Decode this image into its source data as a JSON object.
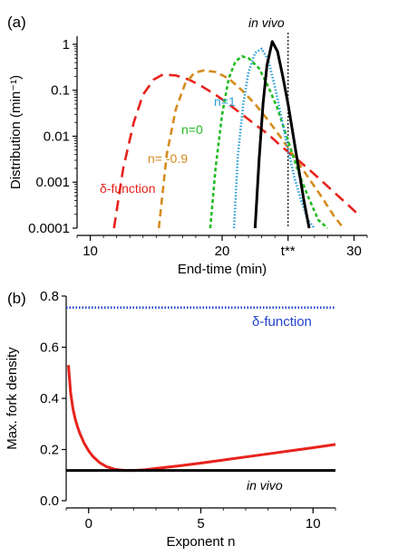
{
  "chart_data": [
    {
      "panel": "(a)",
      "type": "line",
      "xlabel": "End-time (min)",
      "ylabel": "Distribution (min⁻¹)",
      "xlim": [
        9,
        31
      ],
      "ylim": [
        0.0001,
        1.5
      ],
      "yscale": "log",
      "xticks": [
        {
          "value": 10,
          "label": "10"
        },
        {
          "value": 20,
          "label": "20"
        },
        {
          "value": 25,
          "label": "t**"
        },
        {
          "value": 30,
          "label": "30"
        }
      ],
      "yticks": [
        {
          "value": 0.0001,
          "label": "0.0001"
        },
        {
          "value": 0.001,
          "label": "0.001"
        },
        {
          "value": 0.01,
          "label": "0.01"
        },
        {
          "value": 0.1,
          "label": "0.1"
        },
        {
          "value": 1,
          "label": "1"
        }
      ],
      "vline": {
        "x": 25,
        "label": "t**"
      },
      "series": [
        {
          "name": "δ-function",
          "color": "#e8221c",
          "style": "long-dash",
          "x": [
            11.8,
            12.5,
            13.3,
            14.0,
            14.8,
            15.5,
            16.5,
            17.5,
            18.5,
            19.5,
            20.5,
            21.5,
            22.5,
            23.5,
            24.5,
            25.5,
            26.5,
            27.5,
            28.5,
            29.5,
            30.3
          ],
          "y": [
            0.0001,
            0.002,
            0.02,
            0.08,
            0.17,
            0.22,
            0.21,
            0.17,
            0.12,
            0.08,
            0.05,
            0.03,
            0.018,
            0.011,
            0.006,
            0.0035,
            0.002,
            0.0011,
            0.0006,
            0.00033,
            0.0002
          ]
        },
        {
          "name": "n= -0.9",
          "color": "#d48c1c",
          "style": "dash",
          "x": [
            15.2,
            15.8,
            16.5,
            17.2,
            17.9,
            18.6,
            19.5,
            20.5,
            21.5,
            22.5,
            23.5,
            24.5,
            25.5,
            26.5,
            27.5,
            28.5,
            29.2
          ],
          "y": [
            0.0001,
            0.004,
            0.04,
            0.14,
            0.24,
            0.27,
            0.25,
            0.18,
            0.1,
            0.05,
            0.022,
            0.009,
            0.0035,
            0.0013,
            0.0005,
            0.00018,
            0.0001
          ]
        },
        {
          "name": "n=0",
          "color": "#22bb22",
          "style": "short-dash",
          "x": [
            19.1,
            19.5,
            20.0,
            20.5,
            21.0,
            21.5,
            22.0,
            22.8,
            23.5,
            24.2,
            25.0,
            25.8,
            26.5,
            27.3,
            28.0
          ],
          "y": [
            0.0001,
            0.002,
            0.03,
            0.18,
            0.42,
            0.55,
            0.5,
            0.3,
            0.12,
            0.04,
            0.008,
            0.0016,
            0.0005,
            0.00015,
            0.0001
          ]
        },
        {
          "name": "n=1",
          "color": "#2a9ed8",
          "style": "dot",
          "x": [
            20.9,
            21.2,
            21.6,
            22.0,
            22.5,
            23.0,
            23.5,
            24.0,
            24.5,
            25.0,
            25.5,
            26.0,
            26.5,
            27.0
          ],
          "y": [
            0.0001,
            0.004,
            0.05,
            0.25,
            0.65,
            0.8,
            0.45,
            0.12,
            0.025,
            0.005,
            0.0012,
            0.0004,
            0.00015,
            0.0001
          ]
        },
        {
          "name": "in vivo",
          "color": "#000000",
          "style": "solid",
          "x": [
            22.5,
            22.8,
            23.1,
            23.4,
            23.8,
            24.2,
            24.6,
            25.0,
            25.4,
            25.8,
            26.2,
            26.6
          ],
          "y": [
            0.0001,
            0.003,
            0.05,
            0.35,
            1.15,
            0.7,
            0.2,
            0.05,
            0.01,
            0.002,
            0.0004,
            0.0001
          ]
        }
      ]
    },
    {
      "panel": "(b)",
      "type": "line",
      "xlabel": "Exponent n",
      "ylabel": "Max. fork density",
      "xlim": [
        -1,
        11
      ],
      "ylim": [
        0,
        0.8
      ],
      "xticks": [
        {
          "value": 0,
          "label": "0"
        },
        {
          "value": 5,
          "label": "5"
        },
        {
          "value": 10,
          "label": "10"
        }
      ],
      "yticks": [
        {
          "value": 0.0,
          "label": "0.0"
        },
        {
          "value": 0.2,
          "label": "0.2"
        },
        {
          "value": 0.4,
          "label": "0.4"
        },
        {
          "value": 0.6,
          "label": "0.6"
        },
        {
          "value": 0.8,
          "label": "0.8"
        }
      ],
      "series": [
        {
          "name": "δ-function",
          "color": "#2244cc",
          "style": "dot",
          "x": [
            -1,
            11
          ],
          "y": [
            0.755,
            0.755
          ]
        },
        {
          "name": "",
          "color": "#e8221c",
          "style": "solid",
          "x": [
            -0.9,
            -0.8,
            -0.7,
            -0.6,
            -0.5,
            -0.4,
            -0.2,
            0.0,
            0.2,
            0.5,
            0.8,
            1.2,
            1.6,
            2.0,
            2.5,
            3.0,
            4.0,
            5.0,
            6.0,
            7.0,
            8.0,
            9.0,
            10.0,
            11.0
          ],
          "y": [
            0.53,
            0.42,
            0.36,
            0.32,
            0.29,
            0.265,
            0.225,
            0.195,
            0.172,
            0.148,
            0.133,
            0.122,
            0.118,
            0.118,
            0.121,
            0.126,
            0.136,
            0.147,
            0.159,
            0.171,
            0.183,
            0.195,
            0.207,
            0.22
          ]
        },
        {
          "name": "in vivo",
          "color": "#000000",
          "style": "solid",
          "x": [
            -1,
            11
          ],
          "y": [
            0.118,
            0.118
          ]
        }
      ]
    }
  ],
  "labels": {
    "panel_a": "(a)",
    "panel_b": "(b)",
    "a_delta": "δ-function",
    "a_n09": "n= -0.9",
    "a_n0": "n=0",
    "a_n1": "n=1",
    "a_invivo": "in vivo",
    "b_delta": "δ-function",
    "b_invivo": "in vivo"
  }
}
